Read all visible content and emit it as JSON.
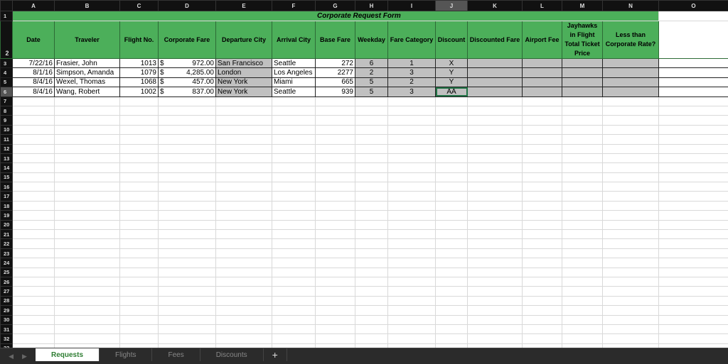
{
  "columns": [
    "A",
    "B",
    "C",
    "D",
    "E",
    "F",
    "G",
    "H",
    "I",
    "J",
    "K",
    "L",
    "M",
    "N",
    "O"
  ],
  "title": "Corporate Request Form",
  "headers": [
    "Date",
    "Traveler",
    "Flight No.",
    "Corporate Fare",
    "Departure City",
    "Arrival City",
    "Base Fare",
    "Weekday",
    "Fare Category",
    "Discount",
    "Discounted Fare",
    "Airport Fee",
    "Jayhawks in Flight Total Ticket Price",
    "Less than Corporate Rate?"
  ],
  "rows": [
    {
      "date": "7/22/16",
      "traveler": "Frasier, John",
      "flight": "1013",
      "currency": "$",
      "fare": "972.00",
      "dep": "San Francisco",
      "arr": "Seattle",
      "base": "272",
      "weekday": "6",
      "category": "1",
      "discount": "X"
    },
    {
      "date": "8/1/16",
      "traveler": "Simpson, Amanda",
      "flight": "1079",
      "currency": "$",
      "fare": "4,285.00",
      "dep": "London",
      "arr": "Los Angeles",
      "base": "2277",
      "weekday": "2",
      "category": "3",
      "discount": "Y"
    },
    {
      "date": "8/4/16",
      "traveler": "Wexel, Thomas",
      "flight": "1068",
      "currency": "$",
      "fare": "457.00",
      "dep": "New York",
      "arr": "Miami",
      "base": "665",
      "weekday": "5",
      "category": "2",
      "discount": "Y"
    },
    {
      "date": "8/4/16",
      "traveler": "Wang, Robert",
      "flight": "1002",
      "currency": "$",
      "fare": "837.00",
      "dep": "New York",
      "arr": "Seattle",
      "base": "939",
      "weekday": "5",
      "category": "3",
      "discount": "AA"
    }
  ],
  "row_count": 33,
  "tabs": [
    "Requests",
    "Flights",
    "Fees",
    "Discounts"
  ],
  "active_tab": "Requests",
  "add_sheet": "+",
  "accent": "#4caf5a"
}
